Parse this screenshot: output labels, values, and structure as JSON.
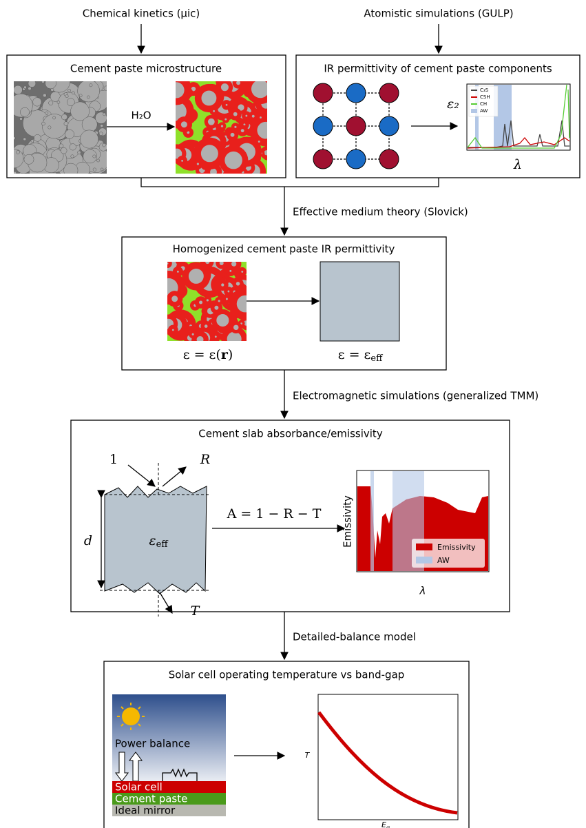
{
  "inputs": [
    "Chemical kinetics (µic)",
    "Atomistic simulations (GULP)"
  ],
  "boxes": [
    {
      "title": "Cement paste microstructure",
      "arrow_label": "H₂O"
    },
    {
      "title": "IR permittivity of cement paste components",
      "ylabel": "ε₂",
      "xlabel": "λ",
      "legend": [
        "C₃S",
        "CSH",
        "CH",
        "AW"
      ]
    },
    {
      "title": "Homogenized cement paste IR permittivity",
      "left_label": [
        "ε = ε(",
        "r",
        ")"
      ],
      "right_label": [
        "ε = ε",
        "eff"
      ]
    },
    {
      "title": "Cement slab absorbance/emissivity",
      "incident": "1",
      "reflected": "R",
      "transmitted": "T",
      "thickness": "d",
      "material": [
        "ε",
        "eff"
      ],
      "equation": "A = 1 − R − T",
      "ylabel": "Emissivity",
      "xlabel": "λ",
      "legend": [
        "Emissivity",
        "AW"
      ]
    },
    {
      "title": "Solar cell operating temperature vs band-gap",
      "power": "Power balance",
      "layers": [
        "Solar cell",
        "Cement paste",
        "Ideal mirror"
      ],
      "ylabel": "T",
      "xlabel": [
        "E",
        "g"
      ]
    }
  ],
  "steps": [
    "Effective medium theory (Slovick)",
    "Electromagnetic simulations (generalized TMM)",
    "Detailed-balance model"
  ]
}
